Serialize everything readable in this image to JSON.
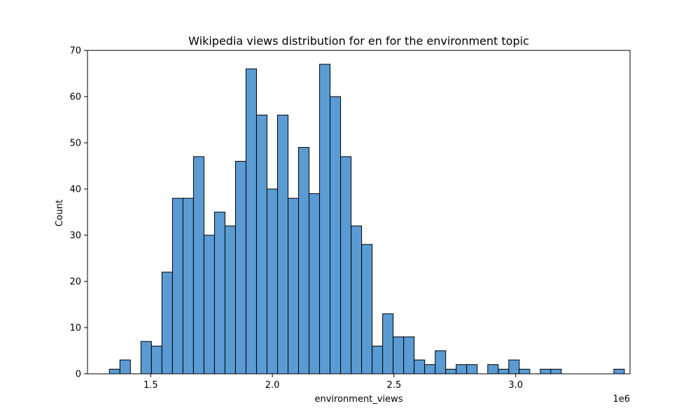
{
  "chart_data": {
    "type": "bar",
    "title": "Wikipedia views distribution for en for the environment topic",
    "xlabel": "environment_views",
    "ylabel": "Count",
    "x_offset_label": "1e6",
    "xlim": [
      1.24,
      3.47
    ],
    "ylim": [
      0,
      70
    ],
    "x_ticks": [
      1.5,
      2.0,
      2.5,
      3.0
    ],
    "x_tick_labels": [
      "1.5",
      "2.0",
      "2.5",
      "3.0"
    ],
    "y_ticks": [
      0,
      10,
      20,
      30,
      40,
      50,
      60,
      70
    ],
    "y_tick_labels": [
      "0",
      "10",
      "20",
      "30",
      "40",
      "50",
      "60",
      "70"
    ],
    "bin_start": 1.33,
    "bin_width": 0.0432,
    "counts": [
      1,
      3,
      0,
      7,
      6,
      22,
      38,
      38,
      47,
      30,
      35,
      32,
      46,
      66,
      56,
      40,
      56,
      38,
      49,
      39,
      67,
      60,
      47,
      32,
      28,
      6,
      13,
      8,
      8,
      3,
      2,
      5,
      1,
      2,
      2,
      0,
      2,
      1,
      3,
      1,
      0,
      1,
      1,
      0,
      0,
      0,
      0,
      0,
      1
    ],
    "bar_color": "#5a9bd4",
    "grid": false,
    "legend": "none"
  }
}
